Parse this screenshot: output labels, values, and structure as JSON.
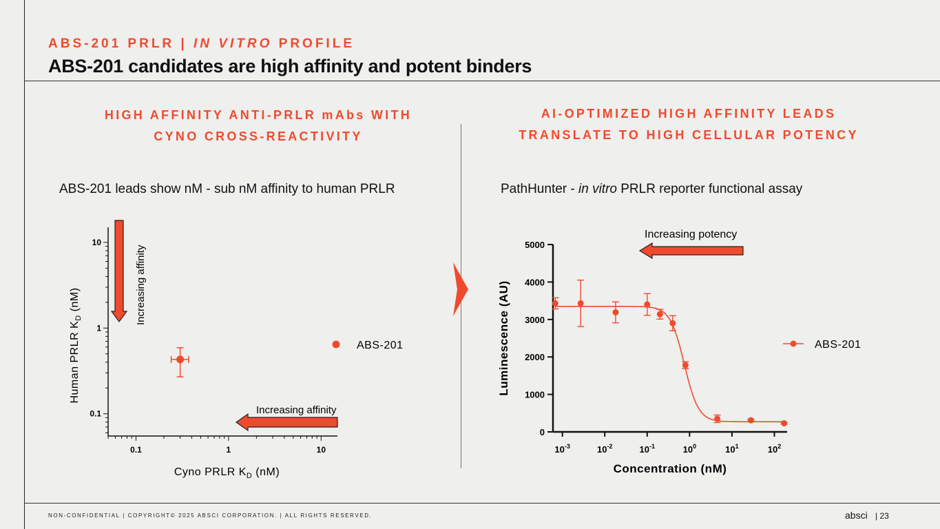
{
  "header": {
    "kicker_prefix": "ABS-201 PRLR | ",
    "kicker_italic": "IN VITRO",
    "kicker_suffix": " PROFILE",
    "title": "ABS-201 candidates are high affinity and potent binders"
  },
  "left": {
    "section_title_line1": "HIGH AFFINITY ANTI-PRLR mAbs WITH",
    "section_title_line2": "CYNO CROSS-REACTIVITY",
    "subtitle": "ABS-201 leads show nM - sub nM affinity to human PRLR"
  },
  "right": {
    "section_title_line1": "AI-OPTIMIZED HIGH AFFINITY LEADS",
    "section_title_line2": "TRANSLATE TO HIGH CELLULAR POTENCY",
    "subtitle_prefix": "PathHunter - ",
    "subtitle_italic": "in vitro",
    "subtitle_suffix": " PRLR reporter functional assay"
  },
  "footer": {
    "text": "NON-CONFIDENTIAL  |  COPYRIGHT© 2025 ABSCI CORPORATION.   |  ALL RIGHTS RESERVED.",
    "logo": "absci",
    "page": "|  23"
  },
  "colors": {
    "accent": "#f04a2e",
    "text": "#111111",
    "background": "#efefed"
  },
  "icons": {
    "divider": "chevron-right-icon"
  },
  "chart_data": [
    {
      "type": "scatter",
      "xlabel_main": "Cyno PRLR K",
      "xlabel_sub": "D",
      "xlabel_unit": " (nM)",
      "ylabel_main": "Human PRLR K",
      "ylabel_sub": "D",
      "ylabel_unit": " (nM)",
      "xscale": "log",
      "yscale": "log",
      "xlim": [
        0.05,
        15
      ],
      "ylim": [
        0.055,
        15
      ],
      "xticks": [
        0.1,
        1,
        10
      ],
      "xtick_labels": [
        "0.1",
        "1",
        "10"
      ],
      "yticks": [
        0.1,
        1,
        10
      ],
      "ytick_labels": [
        "0.1",
        "1",
        "10"
      ],
      "legend": "right",
      "series": [
        {
          "name": "ABS-201",
          "points": [
            {
              "x": 0.3,
              "y": 0.43,
              "xerr": [
                0.24,
                0.37
              ],
              "yerr": [
                0.27,
                0.59
              ]
            }
          ]
        }
      ],
      "annotations": {
        "x_arrow": "Increasing affinity",
        "y_arrow": "Increasing affinity"
      }
    },
    {
      "type": "line",
      "xlabel": "Concentration (nM)",
      "ylabel": "Luminescence (AU)",
      "xscale": "log",
      "xlim": [
        0.0006,
        200
      ],
      "ylim": [
        0,
        5000
      ],
      "xticks": [
        0.001,
        0.01,
        0.1,
        1,
        10,
        100
      ],
      "xtick_labels": [
        {
          "base": "10",
          "exp": "-3"
        },
        {
          "base": "10",
          "exp": "-2"
        },
        {
          "base": "10",
          "exp": "-1"
        },
        {
          "base": "10",
          "exp": "0"
        },
        {
          "base": "10",
          "exp": "1"
        },
        {
          "base": "10",
          "exp": "2"
        }
      ],
      "yticks": [
        0,
        1000,
        2000,
        3000,
        4000,
        5000
      ],
      "ytick_labels": [
        "0",
        "1000",
        "2000",
        "3000",
        "4000",
        "5000"
      ],
      "legend": "right",
      "series": [
        {
          "name": "ABS-201",
          "x": [
            0.00068,
            0.0027,
            0.018,
            0.1,
            0.2,
            0.4,
            0.8,
            4.5,
            28,
            170
          ],
          "y": [
            3430,
            3430,
            3190,
            3400,
            3140,
            2900,
            1780,
            350,
            310,
            230
          ],
          "yerr": [
            150,
            620,
            280,
            290,
            130,
            200,
            90,
            100,
            30,
            25
          ],
          "fit": {
            "top": 3350,
            "bottom": 270,
            "ec50": 0.75,
            "hill": 2.6
          }
        }
      ],
      "annotations": {
        "arrow": "Increasing potency"
      }
    }
  ]
}
